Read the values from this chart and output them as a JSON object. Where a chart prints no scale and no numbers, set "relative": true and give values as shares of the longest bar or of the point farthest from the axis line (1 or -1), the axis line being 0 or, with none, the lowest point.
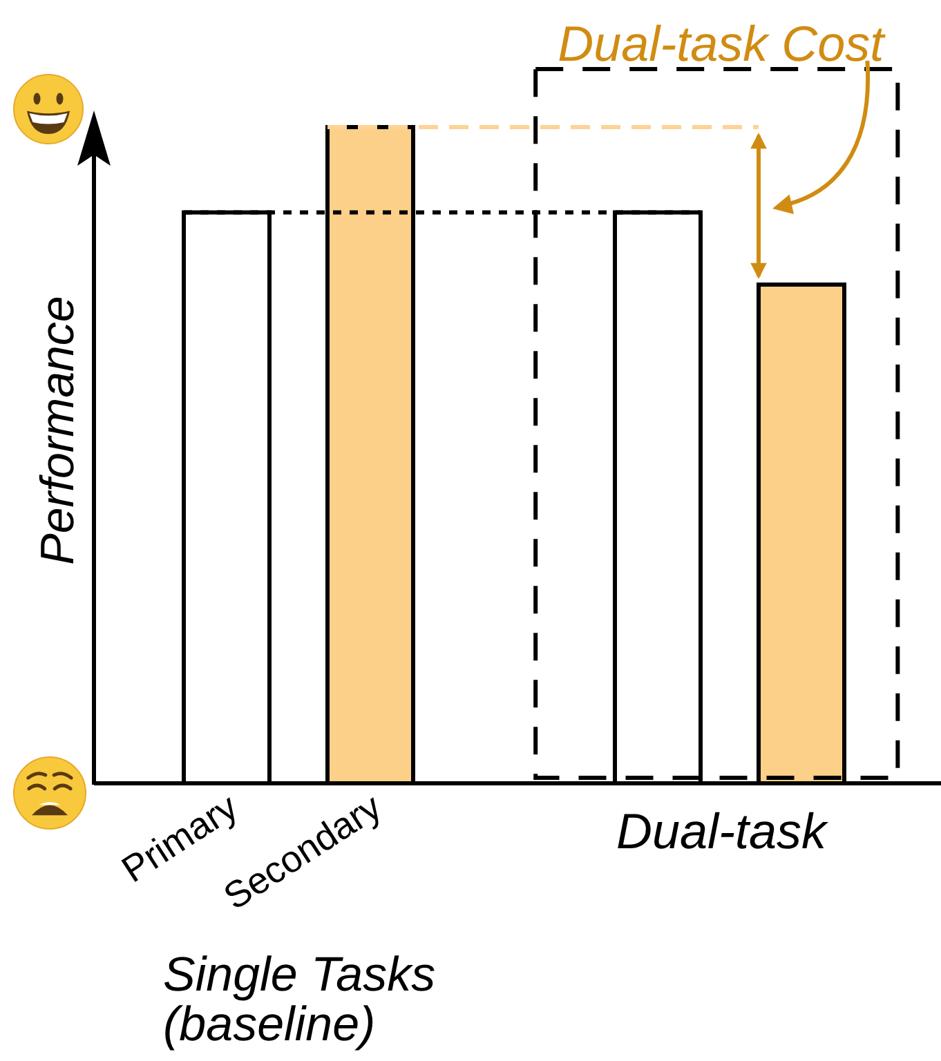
{
  "chart_data": {
    "type": "bar",
    "relative": true,
    "ylabel": "Performance",
    "categories": [
      "Primary",
      "Secondary",
      null,
      null,
      null
    ],
    "values": [
      0.87,
      1,
      null,
      0.87,
      0.76
    ],
    "colors": [
      "#ffffff",
      "#fdd08a",
      null,
      "#ffffff",
      "#fdd08a"
    ],
    "ref_lines": [
      {
        "axis": "y",
        "value": 0.87,
        "color": "#000000",
        "line_style": "dotted"
      },
      {
        "axis": "y",
        "value": 1,
        "color": "#fcd396",
        "line_style": "dashed"
      }
    ],
    "annotations": [
      "Dual-task Cost",
      "Dual-task",
      "Single Tasks (baseline)"
    ]
  }
}
